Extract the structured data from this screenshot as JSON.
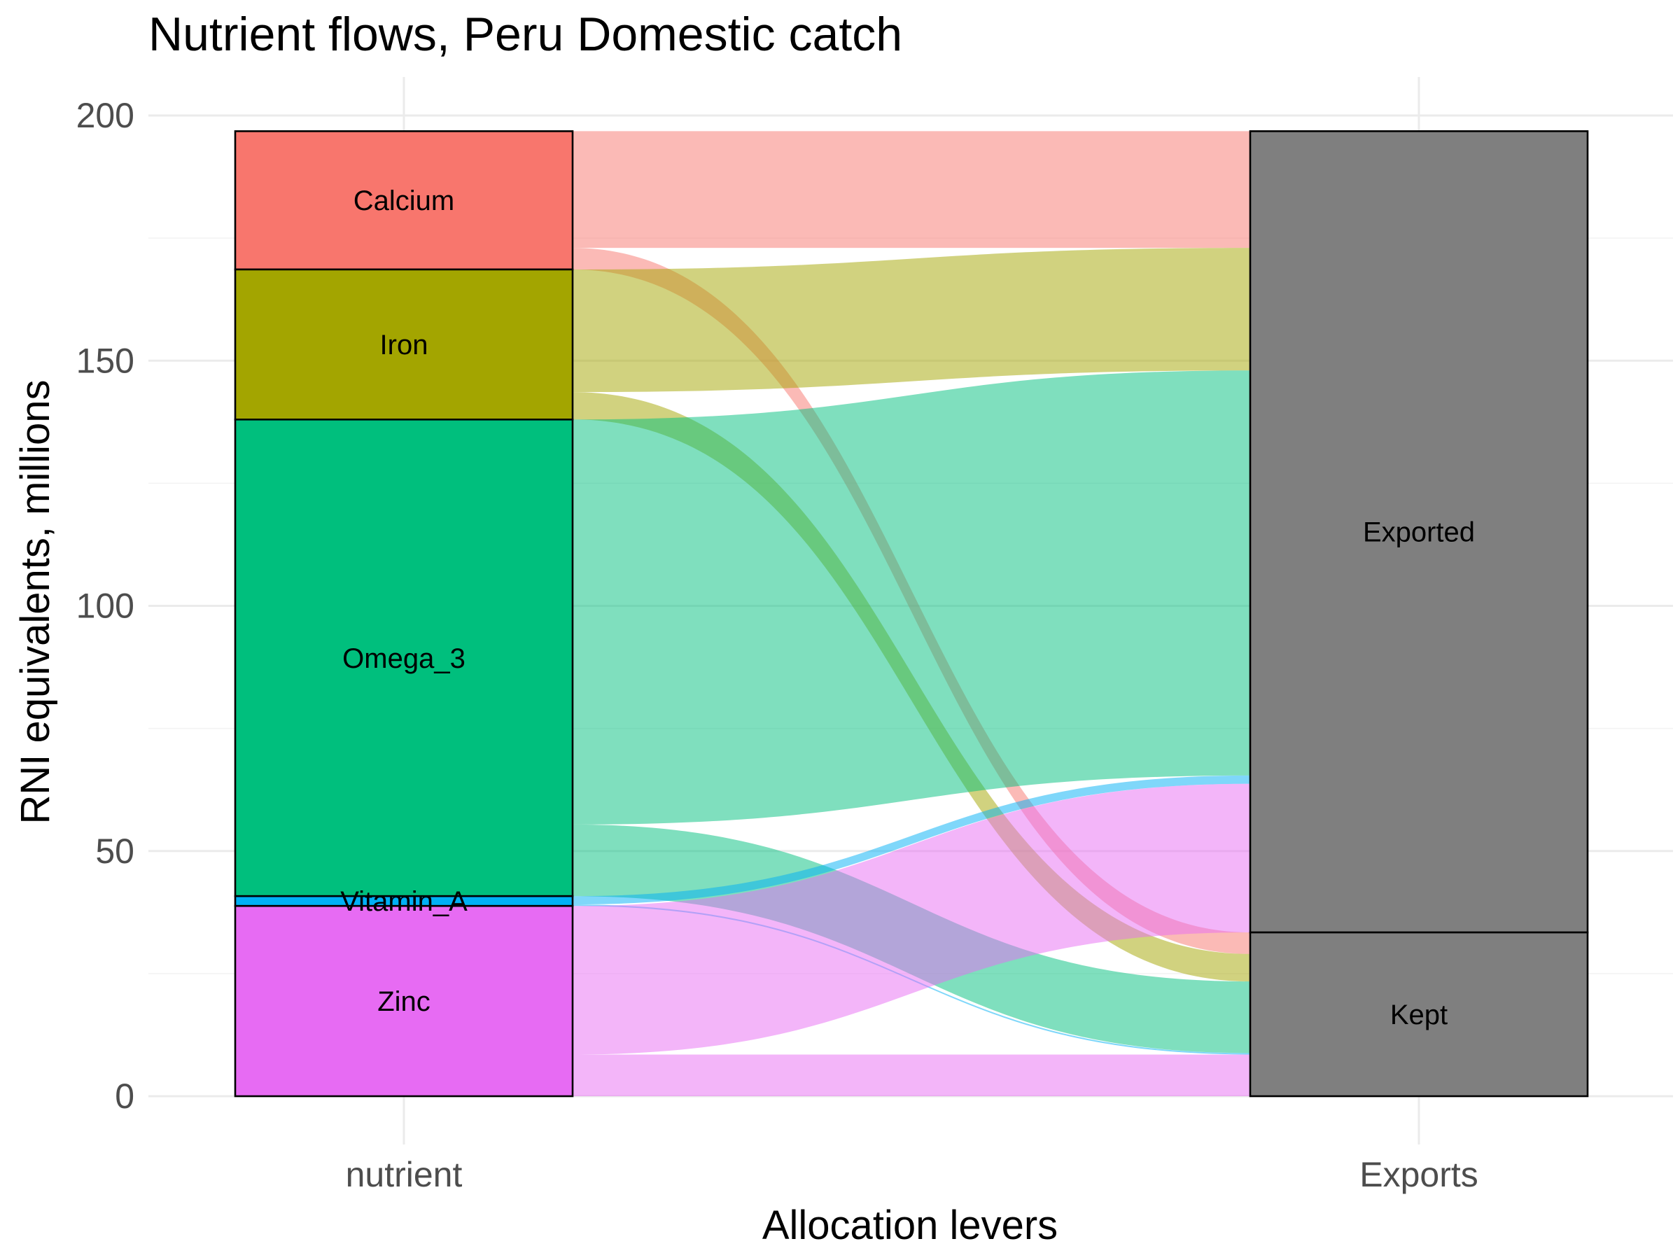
{
  "chart_data": {
    "type": "alluvial",
    "title": "Nutrient flows, Peru Domestic catch",
    "xlabel": "Allocation levers",
    "ylabel": "RNI equivalents, millions",
    "ylim": [
      0,
      200
    ],
    "yticks": [
      0,
      50,
      100,
      150,
      200
    ],
    "axes": [
      "nutrient",
      "Exports"
    ],
    "grid": true,
    "legend": "none",
    "strata": {
      "nutrient": [
        {
          "label": "Calcium",
          "color": "#F8766D",
          "value": 28.2
        },
        {
          "label": "Iron",
          "color": "#A3A500",
          "value": 30.6
        },
        {
          "label": "Omega_3",
          "color": "#00BF7D",
          "value": 97.2
        },
        {
          "label": "Vitamin_A",
          "color": "#00B0F6",
          "value": 2.0
        },
        {
          "label": "Zinc",
          "color": "#E76BF3",
          "value": 38.8
        }
      ],
      "Exports": [
        {
          "label": "Exported",
          "color": "#7f7f7f",
          "value": 163.4
        },
        {
          "label": "Kept",
          "color": "#7f7f7f",
          "value": 33.4
        }
      ]
    },
    "flows": [
      {
        "from": "Calcium",
        "to": "Exported",
        "value": 23.8
      },
      {
        "from": "Calcium",
        "to": "Kept",
        "value": 4.4
      },
      {
        "from": "Iron",
        "to": "Exported",
        "value": 25.0
      },
      {
        "from": "Iron",
        "to": "Kept",
        "value": 5.6
      },
      {
        "from": "Omega_3",
        "to": "Exported",
        "value": 82.6
      },
      {
        "from": "Omega_3",
        "to": "Kept",
        "value": 14.6
      },
      {
        "from": "Vitamin_A",
        "to": "Exported",
        "value": 1.7
      },
      {
        "from": "Vitamin_A",
        "to": "Kept",
        "value": 0.3
      },
      {
        "from": "Zinc",
        "to": "Exported",
        "value": 30.3
      },
      {
        "from": "Zinc",
        "to": "Kept",
        "value": 8.5
      }
    ]
  }
}
